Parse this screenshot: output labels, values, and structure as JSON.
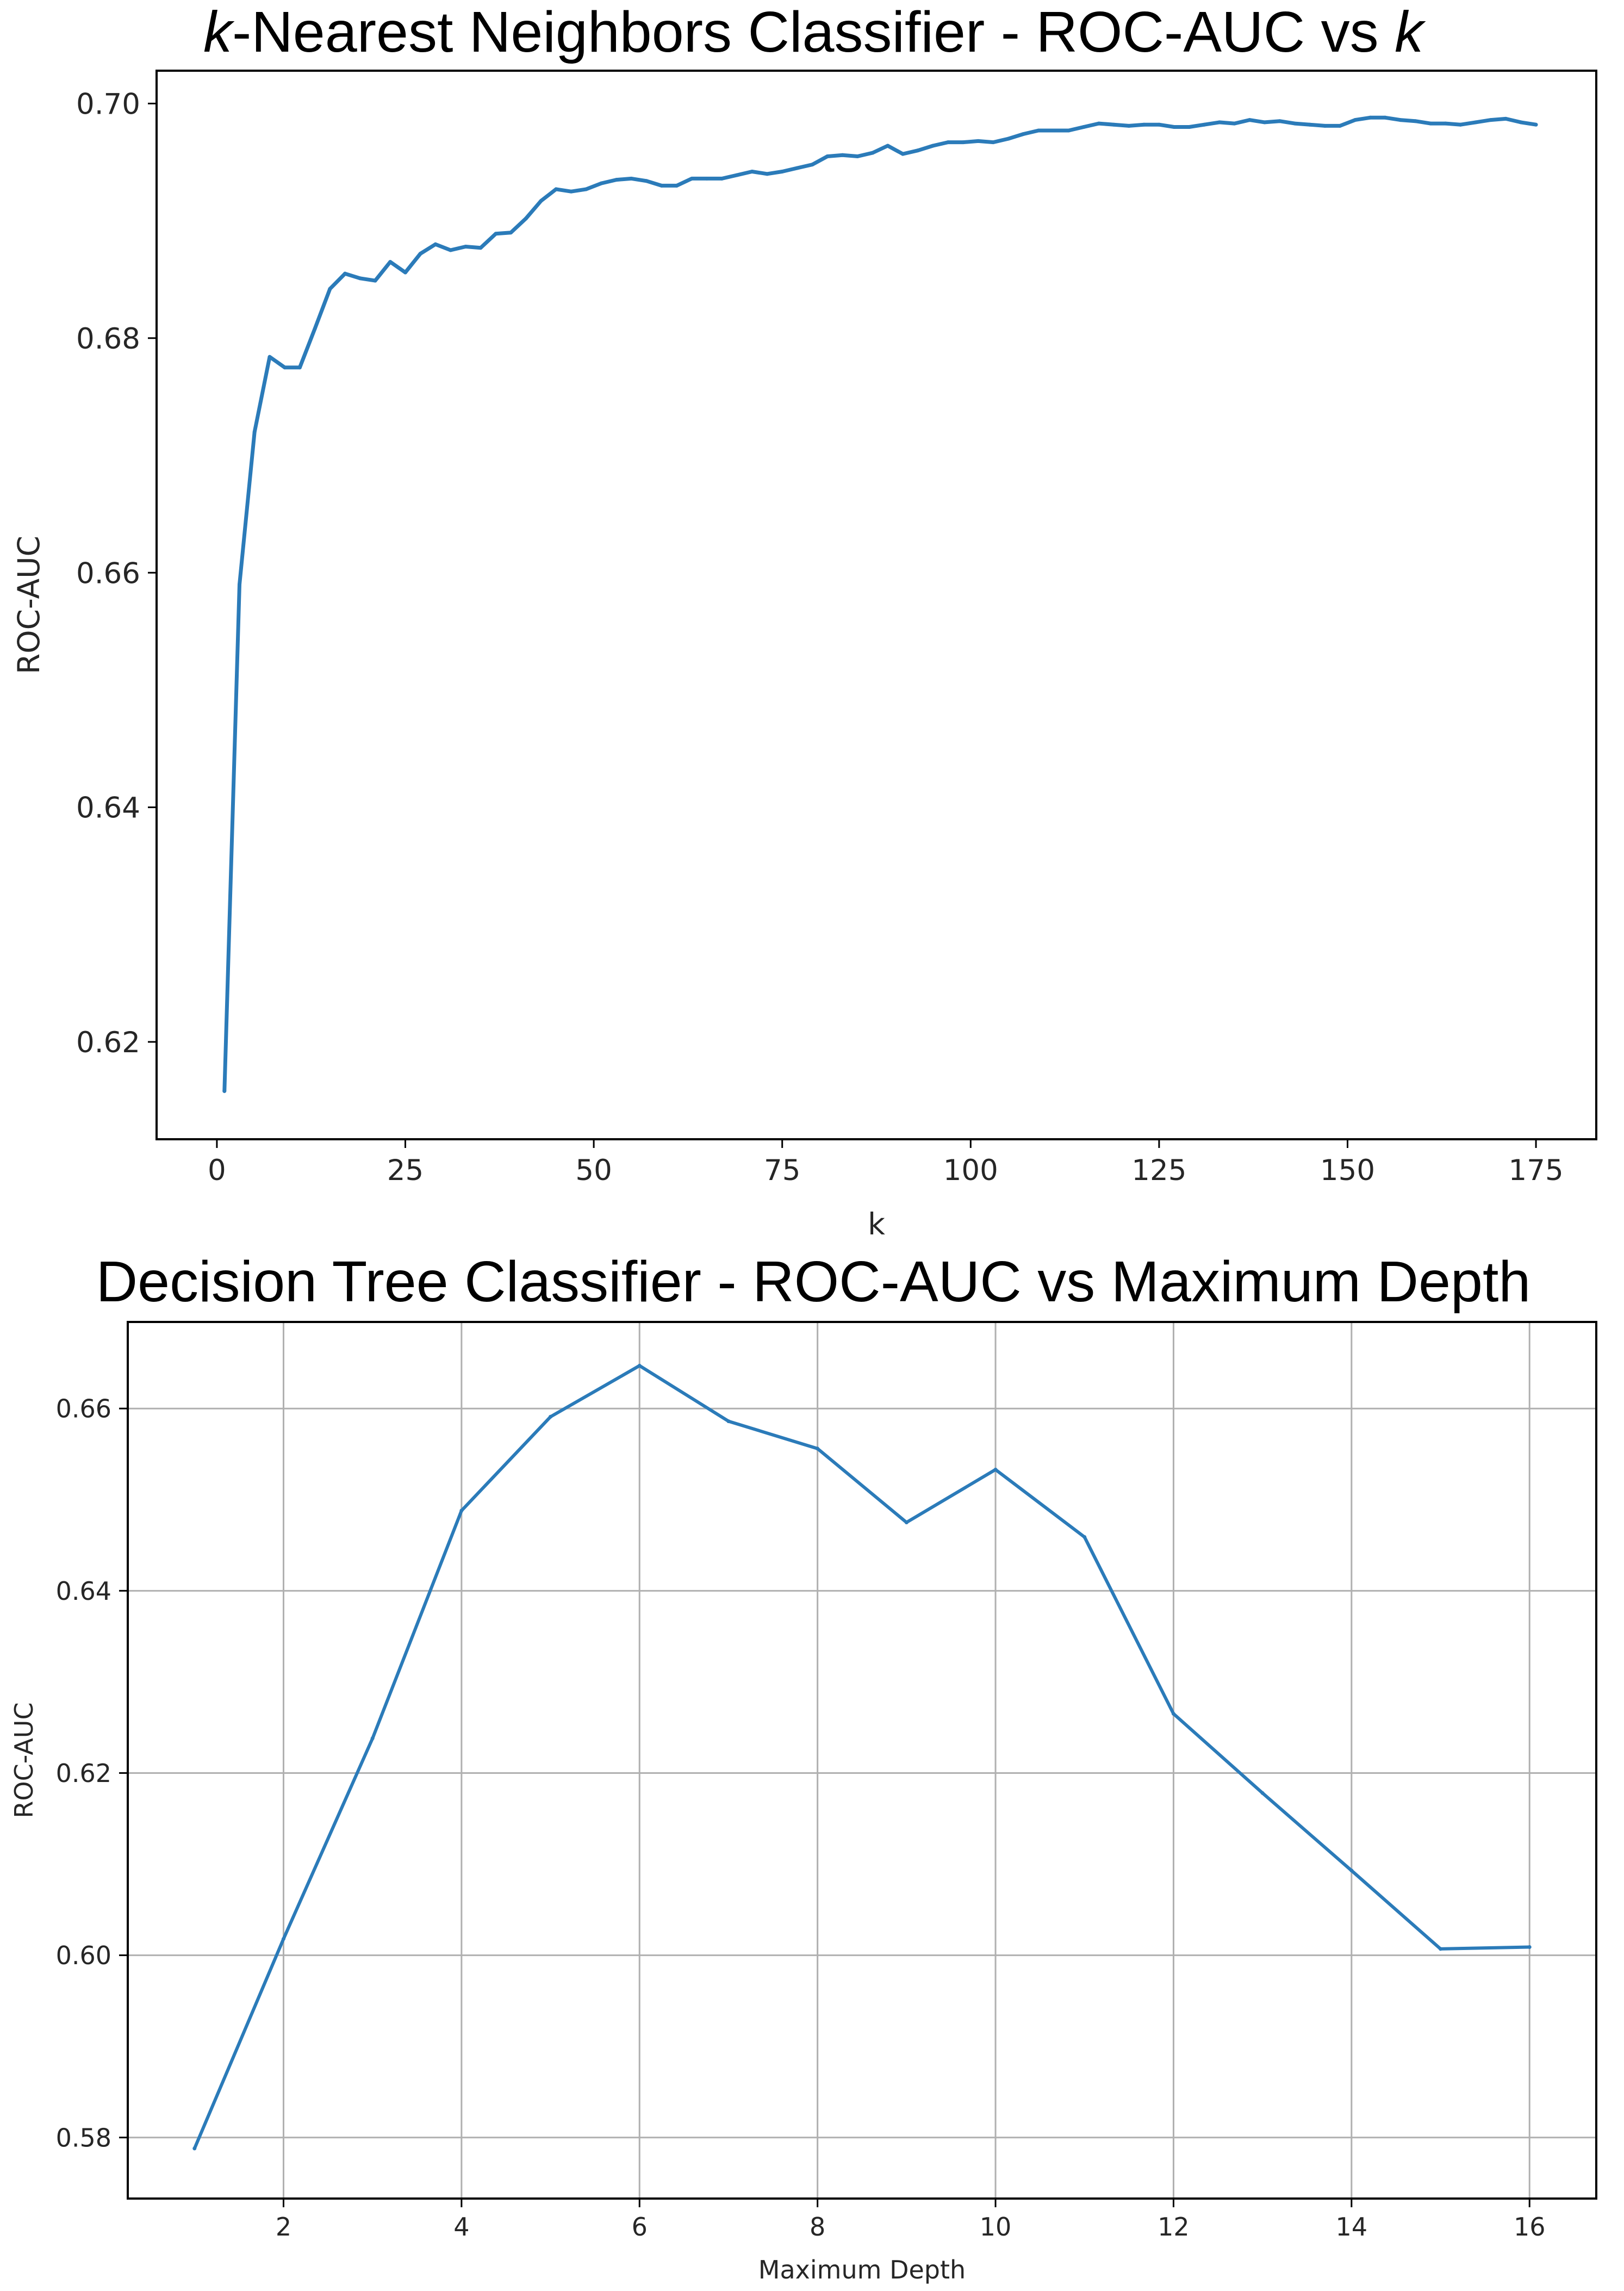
{
  "chart_data": [
    {
      "type": "line",
      "title_prefix": "k",
      "title_middle": "-Nearest Neighbors Classifier - ROC-AUC vs ",
      "title_suffix": "k",
      "xlabel": "k",
      "ylabel": "ROC-AUC",
      "xlim": [
        -8,
        183
      ],
      "ylim": [
        0.6117,
        0.7028
      ],
      "xticks": [
        0,
        25,
        50,
        75,
        100,
        125,
        150,
        175
      ],
      "xtick_labels": [
        "0",
        "25",
        "50",
        "75",
        "100",
        "125",
        "150",
        "175"
      ],
      "yticks": [
        0.62,
        0.64,
        0.66,
        0.68,
        0.7
      ],
      "ytick_labels": [
        "0.62",
        "0.64",
        "0.66",
        "0.68",
        "0.70"
      ],
      "grid": false,
      "line_color": "#2b7bb9",
      "series": [
        {
          "name": "ROC-AUC",
          "x": [
            1,
            3,
            5,
            7,
            9,
            11,
            13,
            15,
            17,
            19,
            21,
            23,
            25,
            27,
            29,
            31,
            33,
            35,
            37,
            39,
            41,
            43,
            45,
            47,
            49,
            51,
            53,
            55,
            57,
            59,
            61,
            63,
            65,
            67,
            69,
            71,
            73,
            75,
            77,
            79,
            81,
            83,
            85,
            87,
            89,
            91,
            93,
            95,
            97,
            99,
            101,
            103,
            105,
            107,
            109,
            111,
            113,
            115,
            117,
            119,
            121,
            123,
            125,
            127,
            129,
            131,
            133,
            135,
            137,
            139,
            141,
            143,
            145,
            147,
            149,
            151,
            153,
            155,
            157,
            159,
            161,
            163,
            165,
            167,
            169,
            171,
            173,
            175
          ],
          "y": [
            0.6158,
            0.659,
            0.672,
            0.6784,
            0.6775,
            0.6775,
            0.6808,
            0.6842,
            0.6855,
            0.6851,
            0.6849,
            0.6865,
            0.6856,
            0.6872,
            0.688,
            0.6875,
            0.6878,
            0.6877,
            0.6889,
            0.689,
            0.6902,
            0.6917,
            0.6927,
            0.6925,
            0.6927,
            0.6932,
            0.6935,
            0.6936,
            0.6934,
            0.693,
            0.693,
            0.6936,
            0.6936,
            0.6936,
            0.6939,
            0.6942,
            0.694,
            0.6942,
            0.6945,
            0.6948,
            0.6955,
            0.6956,
            0.6955,
            0.6958,
            0.6964,
            0.6957,
            0.696,
            0.6964,
            0.6967,
            0.6967,
            0.6968,
            0.6967,
            0.697,
            0.6974,
            0.6977,
            0.6977,
            0.6977,
            0.698,
            0.6983,
            0.6982,
            0.6981,
            0.6982,
            0.6982,
            0.698,
            0.698,
            0.6982,
            0.6984,
            0.6983,
            0.6986,
            0.6984,
            0.6985,
            0.6983,
            0.6982,
            0.6981,
            0.6981,
            0.6986,
            0.6988,
            0.6988,
            0.6986,
            0.6985,
            0.6983,
            0.6983,
            0.6982,
            0.6984,
            0.6986,
            0.6987,
            0.6984,
            0.6982
          ]
        }
      ]
    },
    {
      "type": "line",
      "title": "Decision Tree Classifier - ROC-AUC vs Maximum Depth",
      "xlabel": "Maximum Depth",
      "ylabel": "ROC-AUC",
      "xlim": [
        0.25,
        16.75
      ],
      "ylim": [
        0.5733,
        0.6695
      ],
      "xticks": [
        2,
        4,
        6,
        8,
        10,
        12,
        14,
        16
      ],
      "xtick_labels": [
        "2",
        "4",
        "6",
        "8",
        "10",
        "12",
        "14",
        "16"
      ],
      "yticks": [
        0.58,
        0.6,
        0.62,
        0.64,
        0.66
      ],
      "ytick_labels": [
        "0.58",
        "0.60",
        "0.62",
        "0.64",
        "0.66"
      ],
      "grid": true,
      "line_color": "#2b7bb9",
      "series": [
        {
          "name": "ROC-AUC",
          "x": [
            1,
            2,
            3,
            4,
            5,
            6,
            7,
            8,
            9,
            10,
            11,
            12,
            13,
            14,
            15,
            16
          ],
          "y": [
            0.5788,
            0.6018,
            0.6238,
            0.6488,
            0.6591,
            0.6647,
            0.6586,
            0.6556,
            0.6475,
            0.6533,
            0.6459,
            0.6265,
            0.6178,
            0.6093,
            0.6007,
            0.6009
          ]
        }
      ]
    }
  ]
}
